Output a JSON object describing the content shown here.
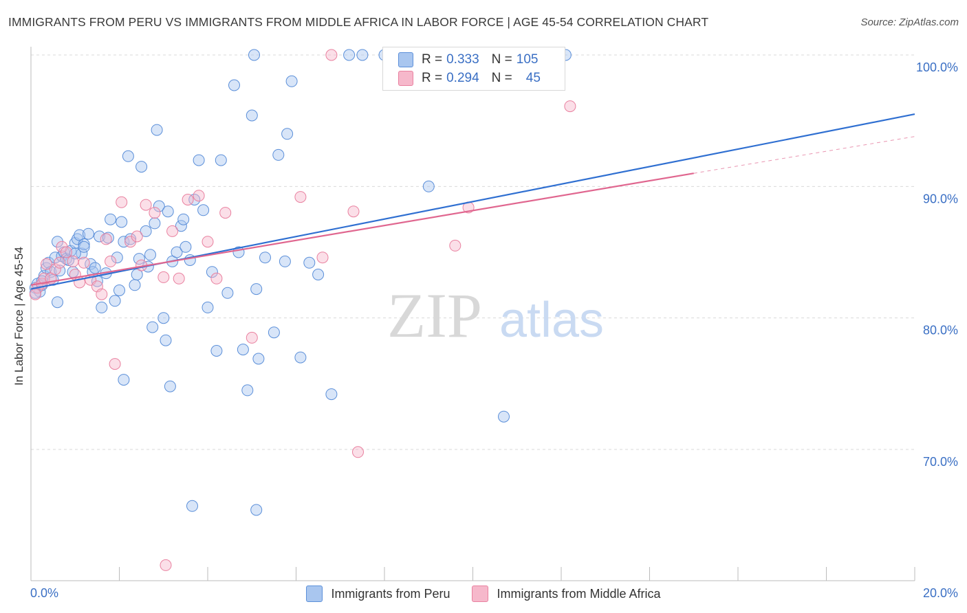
{
  "title": "IMMIGRANTS FROM PERU VS IMMIGRANTS FROM MIDDLE AFRICA IN LABOR FORCE | AGE 45-54 CORRELATION CHART",
  "source": "Source: ZipAtlas.com",
  "watermark": {
    "zip": "ZIP",
    "atlas": "atlas"
  },
  "colors": {
    "blue_fill": "#a9c6ef",
    "blue_stroke": "#5b8fd9",
    "blue_line": "#2f6fd1",
    "pink_fill": "#f6b8cb",
    "pink_stroke": "#e9809f",
    "pink_line": "#e0668f",
    "axis_label": "#3a6fc4",
    "grid": "#d9d9d9"
  },
  "legend": {
    "rows": [
      {
        "r_label": "R =",
        "r_value": "0.333",
        "n_label": "N =",
        "n_value": "105",
        "color": "blue"
      },
      {
        "r_label": "R =",
        "r_value": "0.294",
        "n_label": "N =",
        "n_value": "45",
        "color": "pink"
      }
    ]
  },
  "chart_data": {
    "type": "scatter",
    "title": "IMMIGRANTS FROM PERU VS IMMIGRANTS FROM MIDDLE AFRICA IN LABOR FORCE | AGE 45-54 CORRELATION CHART",
    "xlabel": "",
    "ylabel": "In Labor Force | Age 45-54",
    "xlim": [
      0,
      20
    ],
    "ylim": [
      60,
      100.5
    ],
    "x_tick_labels": [
      "0.0%",
      "20.0%"
    ],
    "y_tick_labels": [
      "100.0%",
      "90.0%",
      "80.0%",
      "70.0%"
    ],
    "y_ticks": [
      100,
      90,
      80,
      70
    ],
    "grid": true,
    "legend_position": "top-center",
    "series": [
      {
        "name": "Immigrants from Peru",
        "color": "blue",
        "trend": {
          "x": [
            0,
            20
          ],
          "y": [
            82.2,
            95.5
          ]
        },
        "points": [
          [
            0.1,
            82.3
          ],
          [
            0.15,
            82.6
          ],
          [
            0.2,
            82.0
          ],
          [
            0.25,
            82.5
          ],
          [
            0.3,
            83.2
          ],
          [
            0.35,
            83.8
          ],
          [
            0.4,
            84.2
          ],
          [
            0.45,
            83.5
          ],
          [
            0.5,
            82.9
          ],
          [
            0.55,
            84.6
          ],
          [
            0.6,
            85.8
          ],
          [
            0.65,
            83.6
          ],
          [
            0.7,
            84.7
          ],
          [
            0.75,
            85.0
          ],
          [
            0.8,
            84.5
          ],
          [
            0.85,
            84.4
          ],
          [
            0.9,
            85.1
          ],
          [
            0.95,
            83.5
          ],
          [
            1.0,
            85.7
          ],
          [
            1.05,
            86.0
          ],
          [
            1.1,
            86.3
          ],
          [
            1.15,
            84.9
          ],
          [
            1.2,
            85.6
          ],
          [
            1.3,
            86.4
          ],
          [
            1.35,
            84.1
          ],
          [
            1.4,
            83.5
          ],
          [
            1.5,
            82.8
          ],
          [
            1.55,
            86.2
          ],
          [
            1.6,
            80.8
          ],
          [
            1.7,
            83.4
          ],
          [
            1.75,
            86.1
          ],
          [
            1.8,
            87.5
          ],
          [
            1.9,
            81.3
          ],
          [
            1.95,
            84.6
          ],
          [
            2.0,
            82.1
          ],
          [
            2.05,
            87.3
          ],
          [
            2.1,
            85.8
          ],
          [
            2.2,
            92.3
          ],
          [
            2.25,
            86.0
          ],
          [
            2.35,
            82.5
          ],
          [
            2.4,
            83.3
          ],
          [
            2.5,
            91.5
          ],
          [
            2.6,
            86.6
          ],
          [
            2.7,
            84.8
          ],
          [
            2.75,
            79.3
          ],
          [
            2.8,
            87.2
          ],
          [
            2.85,
            94.3
          ],
          [
            2.9,
            88.5
          ],
          [
            3.0,
            80.0
          ],
          [
            3.05,
            78.3
          ],
          [
            3.2,
            84.3
          ],
          [
            3.3,
            85.0
          ],
          [
            3.4,
            87.0
          ],
          [
            3.5,
            85.4
          ],
          [
            3.6,
            84.4
          ],
          [
            3.7,
            89.0
          ],
          [
            3.8,
            92.0
          ],
          [
            3.9,
            88.2
          ],
          [
            4.0,
            80.8
          ],
          [
            4.1,
            83.5
          ],
          [
            4.2,
            77.5
          ],
          [
            4.3,
            92.0
          ],
          [
            4.45,
            81.9
          ],
          [
            4.6,
            97.7
          ],
          [
            4.7,
            85.0
          ],
          [
            4.8,
            77.6
          ],
          [
            5.0,
            95.4
          ],
          [
            5.05,
            100.0
          ],
          [
            5.1,
            82.2
          ],
          [
            5.15,
            76.9
          ],
          [
            5.3,
            84.6
          ],
          [
            5.5,
            78.9
          ],
          [
            5.6,
            92.4
          ],
          [
            5.75,
            84.3
          ],
          [
            5.8,
            94.0
          ],
          [
            5.9,
            98.0
          ],
          [
            6.1,
            77.0
          ],
          [
            6.3,
            84.2
          ],
          [
            6.5,
            83.3
          ],
          [
            6.8,
            74.2
          ],
          [
            7.2,
            100.0
          ],
          [
            7.5,
            100.0
          ],
          [
            8.0,
            100.0
          ],
          [
            8.6,
            99.5
          ],
          [
            9.0,
            90.0
          ],
          [
            9.8,
            100.0
          ],
          [
            10.2,
            100.0
          ],
          [
            10.7,
            72.5
          ],
          [
            11.1,
            100.0
          ],
          [
            12.1,
            100.0
          ],
          [
            0.25,
            82.8
          ],
          [
            0.6,
            81.2
          ],
          [
            1.0,
            84.9
          ],
          [
            1.45,
            83.8
          ],
          [
            2.45,
            84.5
          ],
          [
            2.65,
            83.9
          ],
          [
            3.1,
            88.1
          ],
          [
            3.45,
            87.5
          ],
          [
            4.9,
            74.5
          ],
          [
            3.65,
            65.7
          ],
          [
            5.1,
            65.4
          ],
          [
            2.1,
            75.3
          ],
          [
            3.15,
            74.8
          ],
          [
            1.2,
            85.4
          ],
          [
            0.1,
            81.9
          ]
        ]
      },
      {
        "name": "Immigrants from Middle Africa",
        "color": "pink",
        "trend": {
          "x": [
            0,
            15
          ],
          "y": [
            82.5,
            91.0
          ]
        },
        "trend_dashed": {
          "x": [
            15,
            20
          ],
          "y": [
            91.0,
            93.8
          ]
        },
        "points": [
          [
            0.15,
            82.3
          ],
          [
            0.25,
            82.6
          ],
          [
            0.3,
            83.0
          ],
          [
            0.35,
            84.1
          ],
          [
            0.45,
            83.0
          ],
          [
            0.55,
            83.7
          ],
          [
            0.65,
            84.2
          ],
          [
            0.7,
            85.4
          ],
          [
            0.8,
            85.0
          ],
          [
            0.95,
            84.3
          ],
          [
            1.0,
            83.3
          ],
          [
            1.1,
            82.7
          ],
          [
            1.2,
            84.2
          ],
          [
            1.35,
            82.9
          ],
          [
            1.5,
            82.4
          ],
          [
            1.6,
            81.8
          ],
          [
            1.7,
            86.0
          ],
          [
            1.8,
            84.3
          ],
          [
            1.9,
            76.5
          ],
          [
            2.05,
            88.8
          ],
          [
            2.25,
            85.8
          ],
          [
            2.4,
            86.2
          ],
          [
            2.5,
            84.0
          ],
          [
            2.6,
            88.6
          ],
          [
            2.8,
            88.0
          ],
          [
            3.0,
            83.1
          ],
          [
            3.05,
            61.2
          ],
          [
            3.2,
            86.6
          ],
          [
            3.35,
            83.0
          ],
          [
            3.55,
            89.0
          ],
          [
            3.8,
            89.3
          ],
          [
            4.0,
            85.8
          ],
          [
            4.2,
            83.0
          ],
          [
            4.4,
            88.0
          ],
          [
            5.0,
            78.5
          ],
          [
            6.1,
            89.2
          ],
          [
            6.6,
            84.6
          ],
          [
            6.8,
            100.0
          ],
          [
            7.3,
            88.1
          ],
          [
            7.4,
            69.8
          ],
          [
            9.6,
            85.5
          ],
          [
            9.9,
            88.4
          ],
          [
            11.2,
            100.0
          ],
          [
            12.2,
            96.1
          ],
          [
            0.1,
            81.8
          ]
        ]
      }
    ]
  },
  "bottom_legend": {
    "items": [
      {
        "label": "Immigrants from Peru",
        "color": "blue"
      },
      {
        "label": "Immigrants from Middle Africa",
        "color": "pink"
      }
    ]
  }
}
